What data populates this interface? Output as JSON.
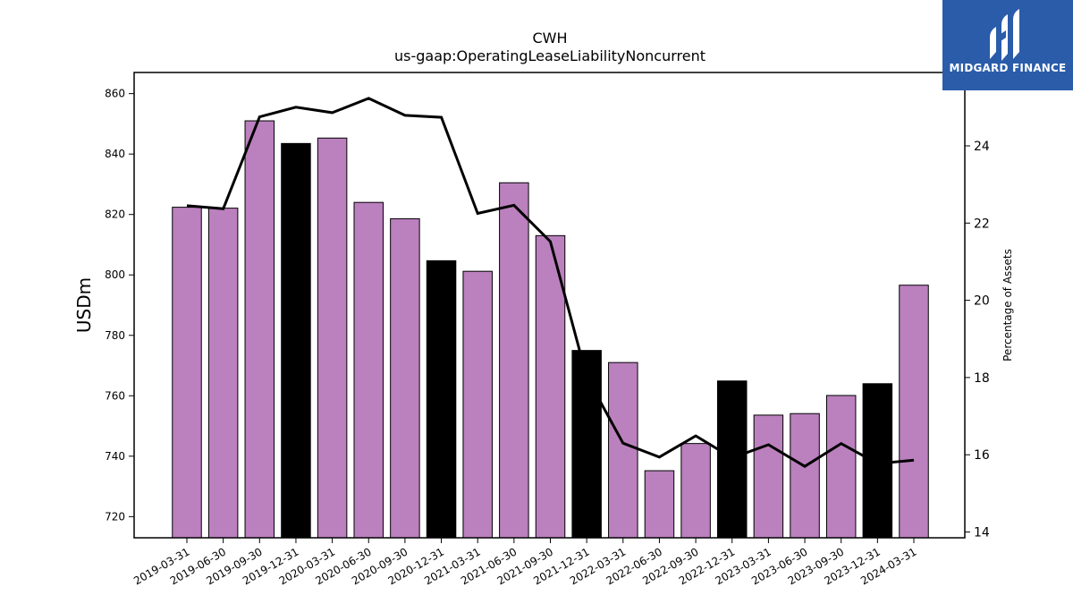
{
  "logo": {
    "brand_text": "MIDGARD FINANCE",
    "icon": "midgard-logo-icon"
  },
  "chart_data": {
    "type": "bar",
    "title": "CWH",
    "subtitle": "us-gaap:OperatingLeaseLiabilityNoncurrent",
    "ylabel": "USDm",
    "ylabel_right": "Percentage of Assets",
    "ylim": [
      713,
      867
    ],
    "ylim_right": [
      13.85,
      25.9
    ],
    "yticks": [
      720,
      740,
      760,
      780,
      800,
      820,
      840,
      860
    ],
    "yticks_right": [
      14,
      16,
      18,
      20,
      22,
      24
    ],
    "categories": [
      "2019-03-31",
      "2019-06-30",
      "2019-09-30",
      "2019-12-31",
      "2020-03-31",
      "2020-06-30",
      "2020-09-30",
      "2020-12-31",
      "2021-03-31",
      "2021-06-30",
      "2021-09-30",
      "2021-12-31",
      "2022-03-31",
      "2022-06-30",
      "2022-09-30",
      "2022-12-31",
      "2023-03-31",
      "2023-06-30",
      "2023-09-30",
      "2023-12-31",
      "2024-03-31"
    ],
    "series": [
      {
        "values": [
          822.4,
          822.1,
          851.0,
          843.5,
          845.3,
          824.0,
          818.6,
          804.7,
          801.2,
          830.5,
          813.0,
          775.0,
          771.0,
          735.2,
          744.2,
          764.9,
          753.6,
          754.1,
          760.1,
          764.0,
          796.6
        ],
        "colors": [
          "#bb80be",
          "#bb80be",
          "#bb80be",
          "#000000",
          "#bb80be",
          "#bb80be",
          "#bb80be",
          "#000000",
          "#bb80be",
          "#bb80be",
          "#bb80be",
          "#000000",
          "#bb80be",
          "#bb80be",
          "#bb80be",
          "#000000",
          "#bb80be",
          "#bb80be",
          "#bb80be",
          "#000000",
          "#bb80be"
        ]
      },
      {
        "type": "line",
        "axis": "right",
        "values": [
          22.45,
          22.37,
          24.75,
          25.0,
          24.86,
          25.23,
          24.79,
          24.74,
          22.25,
          22.46,
          21.52,
          18.02,
          16.3,
          15.94,
          16.49,
          15.92,
          16.26,
          15.7,
          16.29,
          15.77,
          15.86
        ],
        "color": "#000000"
      }
    ],
    "legend": "none",
    "grid": false
  }
}
